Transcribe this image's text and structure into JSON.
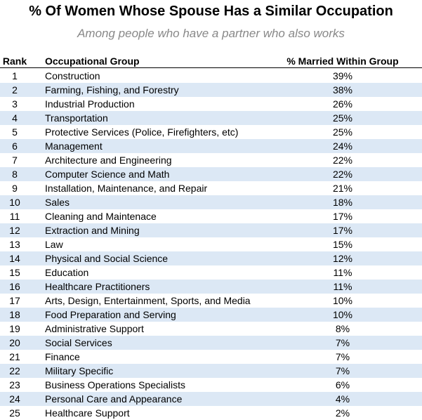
{
  "title": "% Of Women Whose Spouse Has a Similar Occupation",
  "subtitle": "Among people who have a partner who also works",
  "table": {
    "header": [
      "Rank",
      "Occupational Group",
      "% Married Within Group"
    ],
    "rows": [
      [
        1,
        "Construction",
        "39%"
      ],
      [
        2,
        "Farming, Fishing, and Forestry",
        "38%"
      ],
      [
        3,
        "Industrial Production",
        "26%"
      ],
      [
        4,
        "Transportation",
        "25%"
      ],
      [
        5,
        "Protective Services (Police, Firefighters, etc)",
        "25%"
      ],
      [
        6,
        "Management",
        "24%"
      ],
      [
        7,
        "Architecture and Engineering",
        "22%"
      ],
      [
        8,
        "Computer Science and Math",
        "22%"
      ],
      [
        9,
        "Installation, Maintenance, and Repair",
        "21%"
      ],
      [
        10,
        "Sales",
        "18%"
      ],
      [
        11,
        "Cleaning and Maintenace",
        "17%"
      ],
      [
        12,
        "Extraction and Mining",
        "17%"
      ],
      [
        13,
        "Law",
        "15%"
      ],
      [
        14,
        "Physical and Social Science",
        "12%"
      ],
      [
        15,
        "Education",
        "11%"
      ],
      [
        16,
        "Healthcare Practitioners",
        "11%"
      ],
      [
        17,
        "Arts, Design, Entertainment, Sports, and Media",
        "10%"
      ],
      [
        18,
        "Food Preparation and Serving",
        "10%"
      ],
      [
        19,
        "Administrative Support",
        "8%"
      ],
      [
        20,
        "Social Services",
        "7%"
      ],
      [
        21,
        "Finance",
        "7%"
      ],
      [
        22,
        "Military Specific",
        "7%"
      ],
      [
        23,
        "Business Operations Specialists",
        "6%"
      ],
      [
        24,
        "Personal Care and Appearance",
        "4%"
      ],
      [
        25,
        "Healthcare Support",
        "2%"
      ]
    ]
  }
}
